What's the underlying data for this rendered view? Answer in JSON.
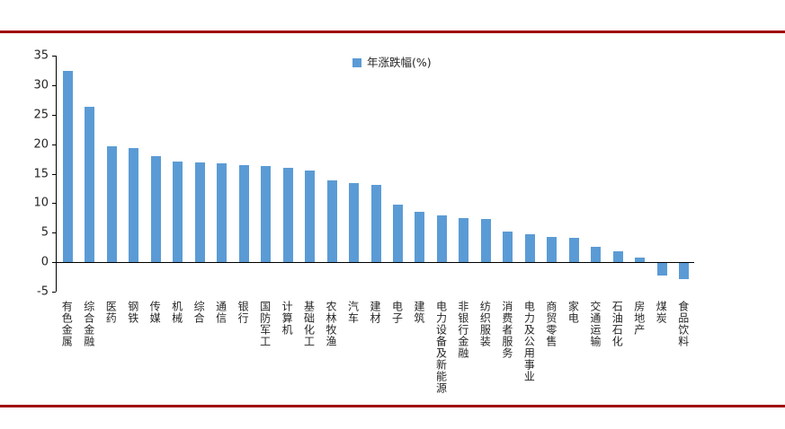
{
  "page": {
    "accent_line_color": "#a00000",
    "text_color": "#262626"
  },
  "chart_data": {
    "type": "bar",
    "title": "",
    "legend": [
      "年涨跌幅(%)"
    ],
    "legend_position": "top-center",
    "bar_color": "#5b9bd5",
    "axis_color": "#000000",
    "grid": false,
    "ylim": [
      -5,
      35
    ],
    "yticks": [
      35,
      30,
      25,
      20,
      15,
      10,
      5,
      0,
      -5
    ],
    "xlabel": "",
    "ylabel": "",
    "categories": [
      "有色金属",
      "综合金融",
      "医药",
      "钢铁",
      "传媒",
      "机械",
      "综合",
      "通信",
      "银行",
      "国防军工",
      "计算机",
      "基础化工",
      "农林牧渔",
      "汽车",
      "建材",
      "电子",
      "建筑",
      "电力设备及新能源",
      "非银行金融",
      "纺织服装",
      "消费者服务",
      "电力及公用事业",
      "商贸零售",
      "家电",
      "交通运输",
      "石油石化",
      "房地产",
      "煤炭",
      "食品饮料"
    ],
    "values": [
      32.4,
      26.4,
      19.6,
      19.3,
      18.0,
      17.0,
      16.9,
      16.7,
      16.5,
      16.3,
      16.0,
      15.5,
      13.8,
      13.4,
      13.1,
      9.7,
      8.5,
      7.9,
      7.5,
      7.3,
      5.2,
      4.7,
      4.3,
      4.1,
      2.6,
      1.8,
      0.8,
      -2.1,
      -2.7
    ]
  }
}
